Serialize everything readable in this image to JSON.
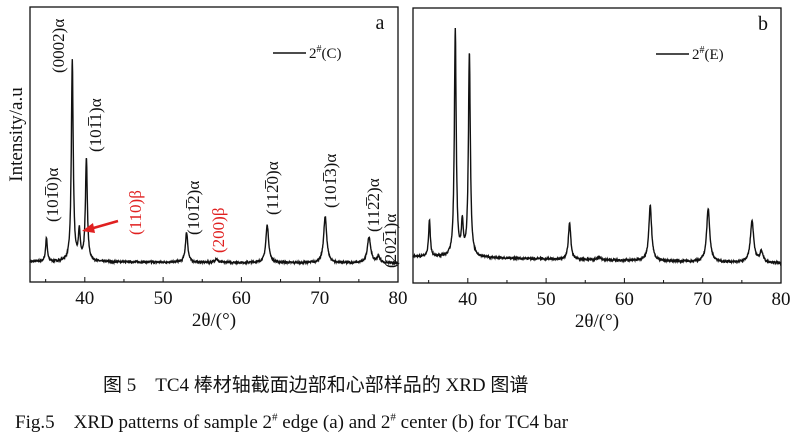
{
  "chart_data": [
    {
      "type": "line",
      "panel_label": "a",
      "xlabel": "2θ/(°)",
      "ylabel": "Intensity/a.u",
      "xlim": [
        33,
        80
      ],
      "ylim": [
        0,
        100
      ],
      "xticks": [
        40,
        50,
        60,
        70,
        80
      ],
      "minor_xticks": [
        35,
        45,
        55,
        65,
        75
      ],
      "grid": false,
      "legend_placement": "top-right",
      "series": [
        {
          "name": "2#(C)",
          "legend_base": "2",
          "legend_sup": "#",
          "legend_rest": "(C)",
          "color": "#111111",
          "baseline_start": 7.4,
          "baseline_end": 6.8,
          "peaks": [
            {
              "x": 35.1,
              "y": 16
            },
            {
              "x": 38.4,
              "y": 80.7
            },
            {
              "x": 39.3,
              "y": 17.8
            },
            {
              "x": 40.2,
              "y": 45
            },
            {
              "x": 53.0,
              "y": 18
            },
            {
              "x": 56.8,
              "y": 8.5
            },
            {
              "x": 63.3,
              "y": 20.7
            },
            {
              "x": 70.7,
              "y": 23.6
            },
            {
              "x": 76.3,
              "y": 16.4
            },
            {
              "x": 77.5,
              "y": 9
            }
          ]
        }
      ],
      "annotations": [
        {
          "text": "(101̅0)α",
          "color": "#111111"
        },
        {
          "text": "(0002)α",
          "color": "#111111"
        },
        {
          "text": "(101̅1)α",
          "color": "#111111"
        },
        {
          "text": "(110)β",
          "color": "#e02020"
        },
        {
          "text": "(101̅2)α",
          "color": "#111111"
        },
        {
          "text": "(200)β",
          "color": "#e02020"
        },
        {
          "text": "(112̅0)α",
          "color": "#111111"
        },
        {
          "text": "(101̅3)α",
          "color": "#111111"
        },
        {
          "text": "(112̅2)α",
          "color": "#111111"
        },
        {
          "text": "(202̅1)α",
          "color": "#111111"
        }
      ],
      "arrow_color": "#e02020"
    },
    {
      "type": "line",
      "panel_label": "b",
      "xlabel": "2θ/(°)",
      "xlim": [
        33,
        80
      ],
      "ylim": [
        0,
        100
      ],
      "xticks": [
        40,
        50,
        60,
        70,
        80
      ],
      "minor_xticks": [
        35,
        45,
        55,
        65,
        75
      ],
      "grid": false,
      "legend_placement": "top-right",
      "series": [
        {
          "name": "2#(E)",
          "legend_base": "2",
          "legend_sup": "#",
          "legend_rest": "(E)",
          "color": "#111111",
          "baseline_start": 9.6,
          "baseline_end": 7.2,
          "peaks": [
            {
              "x": 35.1,
              "y": 22.9
            },
            {
              "x": 38.4,
              "y": 92
            },
            {
              "x": 39.3,
              "y": 21
            },
            {
              "x": 40.2,
              "y": 83.6
            },
            {
              "x": 53.0,
              "y": 21.8
            },
            {
              "x": 56.8,
              "y": 9.5
            },
            {
              "x": 63.3,
              "y": 28
            },
            {
              "x": 70.7,
              "y": 27
            },
            {
              "x": 76.3,
              "y": 22.5
            },
            {
              "x": 77.5,
              "y": 11
            }
          ]
        }
      ]
    }
  ],
  "caption": {
    "chinese": "图 5　TC4 棒材轴截面边部和心部样品的 XRD 图谱",
    "english_prefix": "Fig.5　XRD patterns of sample 2",
    "sup1": "#",
    "english_mid": " edge (a) and 2",
    "sup2": "#",
    "english_suffix": " center (b) for TC4 bar"
  }
}
